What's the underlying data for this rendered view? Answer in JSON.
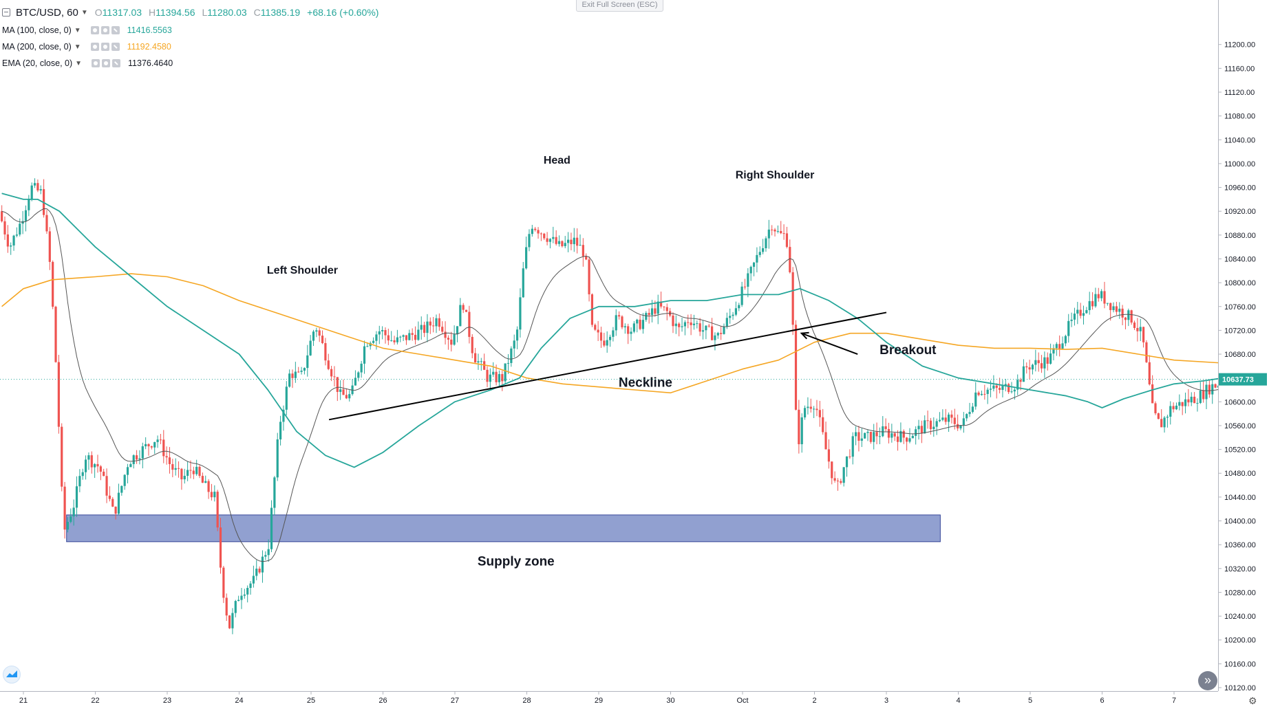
{
  "header": {
    "symbol": "BTC/USD, 60",
    "ohlc": {
      "o_label": "O",
      "o_value": "11317.03",
      "h_label": "H",
      "h_value": "11394.56",
      "l_label": "L",
      "l_value": "11280.03",
      "c_label": "C",
      "c_value": "11385.19",
      "change": "+68.16 (+0.60%)"
    }
  },
  "indicators": [
    {
      "name": "MA (100, close, 0)",
      "value": "11416.5563",
      "color": "#26a69a"
    },
    {
      "name": "MA (200, close, 0)",
      "value": "11192.4580",
      "color": "#f5a623"
    },
    {
      "name": "EMA (20, close, 0)",
      "value": "11376.4640",
      "color": "#131722"
    }
  ],
  "exit_fullscreen_label": "Exit Full Screen (ESC)",
  "colors": {
    "up": "#26a69a",
    "down": "#ef5350",
    "ma100": "#26a69a",
    "ma200": "#f5a623",
    "ema20": "#555555",
    "zone_fill": "#8c9bce",
    "zone_stroke": "#2c3e94",
    "price_tag": "#26a69a"
  },
  "icons": [
    "symbol-icon",
    "chevron-down-icon",
    "eye-icon",
    "settings-icon",
    "close-icon",
    "tradingview-logo-icon",
    "go-to-latest-icon",
    "gear-icon"
  ],
  "chart_data": {
    "type": "candlestick",
    "title": "BTC/USD, 60",
    "ylim": [
      10120,
      11220
    ],
    "y_scale": "right",
    "y_ticks": [
      10120,
      10160,
      10200,
      10240,
      10280,
      10320,
      10360,
      10400,
      10440,
      10480,
      10520,
      10560,
      10600,
      10640,
      10680,
      10720,
      10760,
      10800,
      10840,
      10880,
      10920,
      10960,
      11000,
      11040,
      11080,
      11120,
      11160,
      11200
    ],
    "y_tick_labels": [
      "10120.00",
      "10160.00",
      "10200.00",
      "10240.00",
      "10280.00",
      "10320.00",
      "10360.00",
      "10400.00",
      "10440.00",
      "10480.00",
      "10520.00",
      "10560.00",
      "10600.00",
      "10640.00",
      "10680.00",
      "10720.00",
      "10760.00",
      "10800.00",
      "10840.00",
      "10880.00",
      "10920.00",
      "10960.00",
      "11000.00",
      "11040.00",
      "11080.00",
      "11120.00",
      "11160.00",
      "11200.00"
    ],
    "x_ticks": [
      {
        "label": "21",
        "day": 21.0
      },
      {
        "label": "22",
        "day": 22.0
      },
      {
        "label": "23",
        "day": 23.0
      },
      {
        "label": "24",
        "day": 24.0
      },
      {
        "label": "25",
        "day": 25.0
      },
      {
        "label": "26",
        "day": 26.0
      },
      {
        "label": "27",
        "day": 27.0
      },
      {
        "label": "28",
        "day": 28.0
      },
      {
        "label": "29",
        "day": 29.0
      },
      {
        "label": "30",
        "day": 30.0
      },
      {
        "label": "Oct",
        "day": 31.0
      },
      {
        "label": "2",
        "day": 32.0
      },
      {
        "label": "3",
        "day": 33.0
      },
      {
        "label": "4",
        "day": 34.0
      },
      {
        "label": "5",
        "day": 35.0
      },
      {
        "label": "6",
        "day": 36.0
      },
      {
        "label": "7",
        "day": 37.0
      }
    ],
    "x_range": [
      20.7,
      37.7
    ],
    "last_price": "10637.73",
    "price_anchors": [
      [
        20.7,
        10920
      ],
      [
        20.85,
        10860
      ],
      [
        21.0,
        10900
      ],
      [
        21.15,
        10960
      ],
      [
        21.3,
        10950
      ],
      [
        21.42,
        10820
      ],
      [
        21.5,
        10650
      ],
      [
        21.6,
        10380
      ],
      [
        21.75,
        10430
      ],
      [
        21.9,
        10510
      ],
      [
        22.1,
        10490
      ],
      [
        22.3,
        10410
      ],
      [
        22.5,
        10500
      ],
      [
        22.7,
        10520
      ],
      [
        22.9,
        10540
      ],
      [
        23.1,
        10490
      ],
      [
        23.25,
        10470
      ],
      [
        23.4,
        10490
      ],
      [
        23.55,
        10460
      ],
      [
        23.7,
        10440
      ],
      [
        23.8,
        10300
      ],
      [
        23.9,
        10220
      ],
      [
        24.05,
        10280
      ],
      [
        24.25,
        10300
      ],
      [
        24.45,
        10360
      ],
      [
        24.6,
        10560
      ],
      [
        24.75,
        10650
      ],
      [
        24.9,
        10640
      ],
      [
        25.1,
        10730
      ],
      [
        25.3,
        10660
      ],
      [
        25.45,
        10610
      ],
      [
        25.6,
        10610
      ],
      [
        25.8,
        10700
      ],
      [
        26.0,
        10720
      ],
      [
        26.2,
        10700
      ],
      [
        26.4,
        10710
      ],
      [
        26.6,
        10720
      ],
      [
        26.8,
        10740
      ],
      [
        27.0,
        10700
      ],
      [
        27.15,
        10770
      ],
      [
        27.3,
        10680
      ],
      [
        27.5,
        10640
      ],
      [
        27.7,
        10640
      ],
      [
        27.9,
        10710
      ],
      [
        28.0,
        10830
      ],
      [
        28.1,
        10900
      ],
      [
        28.3,
        10880
      ],
      [
        28.5,
        10860
      ],
      [
        28.7,
        10870
      ],
      [
        28.85,
        10850
      ],
      [
        28.95,
        10720
      ],
      [
        29.1,
        10700
      ],
      [
        29.3,
        10740
      ],
      [
        29.5,
        10720
      ],
      [
        29.7,
        10740
      ],
      [
        29.85,
        10760
      ],
      [
        30.0,
        10750
      ],
      [
        30.15,
        10720
      ],
      [
        30.3,
        10740
      ],
      [
        30.5,
        10720
      ],
      [
        30.7,
        10710
      ],
      [
        30.9,
        10750
      ],
      [
        31.1,
        10800
      ],
      [
        31.3,
        10860
      ],
      [
        31.45,
        10900
      ],
      [
        31.55,
        10880
      ],
      [
        31.65,
        10880
      ],
      [
        31.72,
        10800
      ],
      [
        31.8,
        10520
      ],
      [
        31.9,
        10590
      ],
      [
        32.05,
        10600
      ],
      [
        32.2,
        10520
      ],
      [
        32.35,
        10450
      ],
      [
        32.45,
        10490
      ],
      [
        32.6,
        10540
      ],
      [
        32.8,
        10540
      ],
      [
        33.0,
        10550
      ],
      [
        33.3,
        10540
      ],
      [
        33.6,
        10560
      ],
      [
        33.9,
        10570
      ],
      [
        34.1,
        10560
      ],
      [
        34.3,
        10620
      ],
      [
        34.6,
        10620
      ],
      [
        34.85,
        10630
      ],
      [
        35.0,
        10660
      ],
      [
        35.3,
        10670
      ],
      [
        35.6,
        10730
      ],
      [
        35.8,
        10760
      ],
      [
        36.0,
        10780
      ],
      [
        36.2,
        10760
      ],
      [
        36.45,
        10740
      ],
      [
        36.6,
        10710
      ],
      [
        36.75,
        10580
      ],
      [
        36.85,
        10560
      ],
      [
        37.0,
        10590
      ],
      [
        37.2,
        10600
      ],
      [
        37.4,
        10610
      ],
      [
        37.55,
        10625
      ],
      [
        37.66,
        10630
      ]
    ],
    "ma100": [
      [
        20.7,
        10950
      ],
      [
        21.0,
        10940
      ],
      [
        21.2,
        10940
      ],
      [
        21.5,
        10920
      ],
      [
        22.0,
        10860
      ],
      [
        22.5,
        10810
      ],
      [
        23.0,
        10760
      ],
      [
        23.5,
        10720
      ],
      [
        24.0,
        10680
      ],
      [
        24.4,
        10620
      ],
      [
        24.8,
        10550
      ],
      [
        25.2,
        10510
      ],
      [
        25.6,
        10490
      ],
      [
        26.0,
        10515
      ],
      [
        26.5,
        10560
      ],
      [
        27.0,
        10600
      ],
      [
        27.5,
        10620
      ],
      [
        27.9,
        10640
      ],
      [
        28.2,
        10690
      ],
      [
        28.6,
        10740
      ],
      [
        29.0,
        10760
      ],
      [
        29.5,
        10760
      ],
      [
        30.0,
        10770
      ],
      [
        30.5,
        10770
      ],
      [
        31.0,
        10780
      ],
      [
        31.5,
        10780
      ],
      [
        31.8,
        10790
      ],
      [
        32.2,
        10770
      ],
      [
        32.6,
        10740
      ],
      [
        33.0,
        10700
      ],
      [
        33.5,
        10660
      ],
      [
        34.0,
        10640
      ],
      [
        34.5,
        10630
      ],
      [
        35.0,
        10620
      ],
      [
        35.5,
        10610
      ],
      [
        35.8,
        10600
      ],
      [
        36.0,
        10590
      ],
      [
        36.3,
        10605
      ],
      [
        36.7,
        10620
      ],
      [
        37.0,
        10630
      ],
      [
        37.4,
        10635
      ],
      [
        37.68,
        10640
      ]
    ],
    "ma200": [
      [
        20.7,
        10760
      ],
      [
        21.0,
        10790
      ],
      [
        21.4,
        10805
      ],
      [
        22.0,
        10810
      ],
      [
        22.5,
        10815
      ],
      [
        23.0,
        10810
      ],
      [
        23.5,
        10795
      ],
      [
        24.0,
        10770
      ],
      [
        24.5,
        10750
      ],
      [
        25.0,
        10730
      ],
      [
        25.5,
        10710
      ],
      [
        26.0,
        10690
      ],
      [
        26.5,
        10680
      ],
      [
        27.0,
        10670
      ],
      [
        27.5,
        10660
      ],
      [
        28.0,
        10640
      ],
      [
        28.5,
        10630
      ],
      [
        29.0,
        10625
      ],
      [
        29.5,
        10620
      ],
      [
        30.0,
        10615
      ],
      [
        30.5,
        10635
      ],
      [
        31.0,
        10655
      ],
      [
        31.5,
        10670
      ],
      [
        32.0,
        10700
      ],
      [
        32.5,
        10715
      ],
      [
        33.0,
        10715
      ],
      [
        33.5,
        10705
      ],
      [
        34.0,
        10695
      ],
      [
        34.5,
        10690
      ],
      [
        35.0,
        10690
      ],
      [
        35.5,
        10688
      ],
      [
        36.0,
        10690
      ],
      [
        36.5,
        10680
      ],
      [
        37.0,
        10670
      ],
      [
        37.68,
        10665
      ]
    ],
    "annotations": [
      {
        "text": "Head",
        "day": 28.42,
        "price": 11000
      },
      {
        "text": "Right Shoulder",
        "day": 31.45,
        "price": 10975
      },
      {
        "text": "Left Shoulder",
        "day": 24.88,
        "price": 10815
      },
      {
        "text": "Neckline",
        "day": 29.65,
        "price": 10625
      },
      {
        "text": "Breakout",
        "day": 33.3,
        "price": 10680
      },
      {
        "text": "Supply zone",
        "day": 27.85,
        "price": 10325
      }
    ],
    "neckline": [
      [
        25.25,
        10570
      ],
      [
        33.0,
        10750
      ]
    ],
    "breakout_arrow": {
      "from": [
        32.6,
        10680
      ],
      "to": [
        31.82,
        10715
      ]
    },
    "supply_zone": {
      "day_from": 21.6,
      "day_to": 33.75,
      "price_low": 10365,
      "price_high": 10410
    }
  }
}
